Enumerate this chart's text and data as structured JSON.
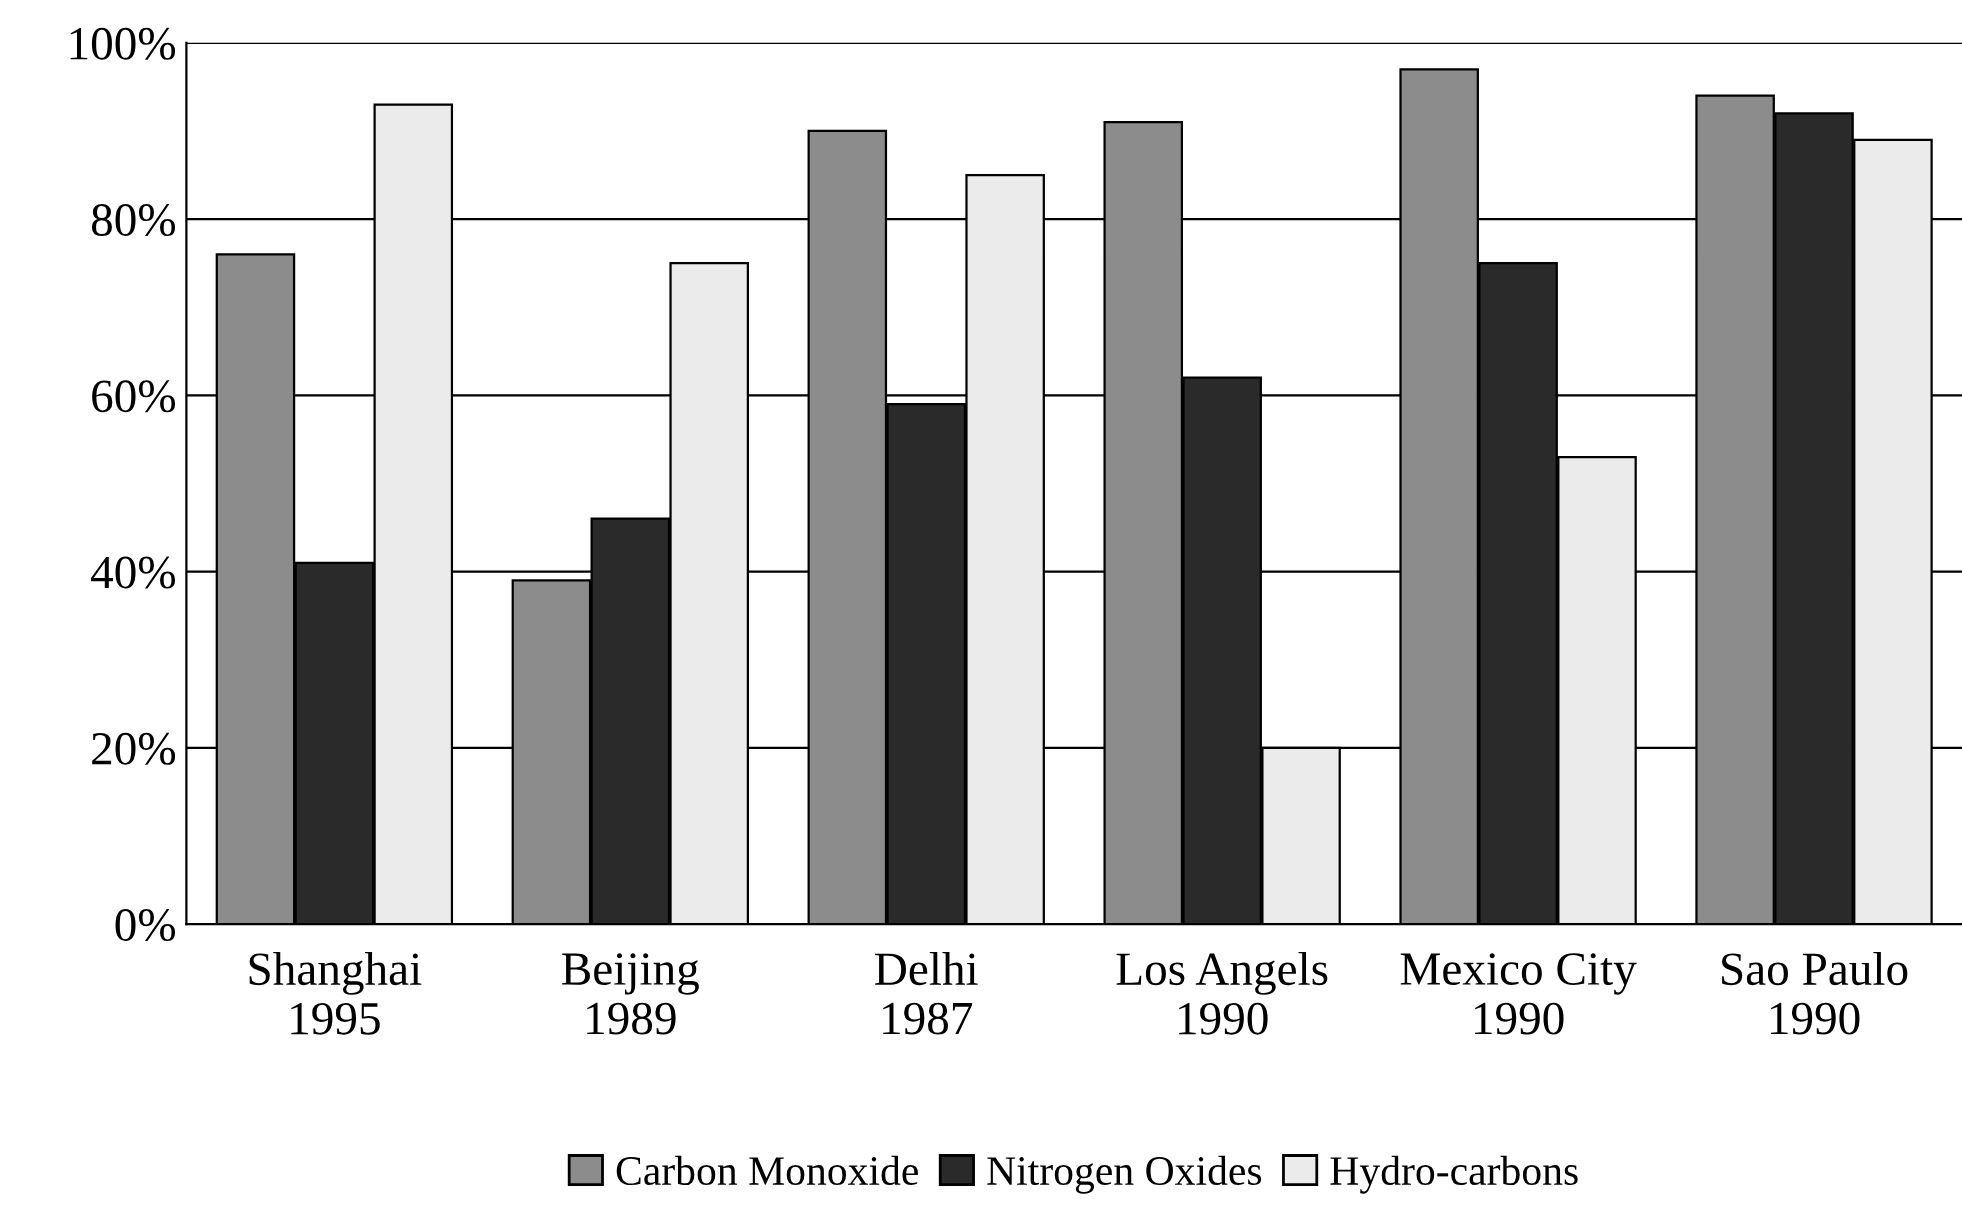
{
  "chart_data": {
    "type": "bar",
    "categories": [
      "Shanghai\n1995",
      "Beijing\n1989",
      "Delhi\n1987",
      "Los Angels\n1990",
      "Mexico City\n1990",
      "Sao Paulo\n1990"
    ],
    "series": [
      {
        "name": "Carbon Monoxide",
        "color": "#8c8c8c",
        "values": [
          76,
          39,
          90,
          91,
          97,
          94
        ]
      },
      {
        "name": "Nitrogen Oxides",
        "color": "#2a2a2a",
        "values": [
          41,
          46,
          59,
          62,
          75,
          92
        ]
      },
      {
        "name": "Hydro-carbons",
        "color": "#ebebeb",
        "values": [
          93,
          75,
          85,
          20,
          53,
          89
        ]
      }
    ],
    "ylim": [
      0,
      100
    ],
    "yticks": [
      {
        "value": 0,
        "label": "0%"
      },
      {
        "value": 20,
        "label": "20%"
      },
      {
        "value": 40,
        "label": "40%"
      },
      {
        "value": 60,
        "label": "60%"
      },
      {
        "value": 80,
        "label": "80%"
      },
      {
        "value": 100,
        "label": "100%"
      }
    ],
    "grid": "y",
    "legend": "bottom"
  }
}
